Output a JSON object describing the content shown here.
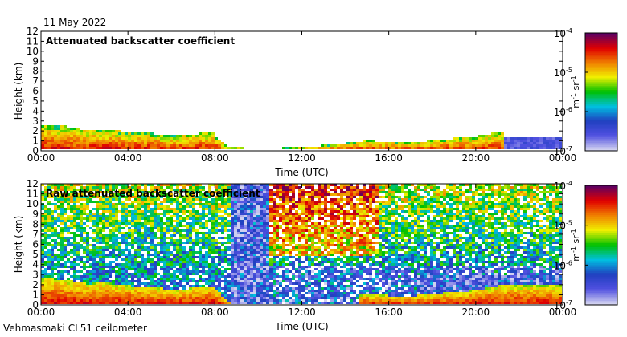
{
  "header": {
    "date": "11 May 2022"
  },
  "footer": {
    "station": "Vehmasmaki CL51 ceilometer"
  },
  "colorbar": {
    "tick_labels": [
      "10",
      "10",
      "10",
      "10"
    ],
    "exponents": [
      "-4",
      "-5",
      "-6",
      "-7"
    ],
    "unit_main": "m",
    "unit_exp1": "-1",
    "unit_mid": " sr",
    "unit_exp2": "-1",
    "colors": [
      "#d0d0f0",
      "#5050e0",
      "#2040c0",
      "#00c0e0",
      "#00c000",
      "#f0f000",
      "#f08000",
      "#e00000",
      "#600060"
    ]
  },
  "chart_data": [
    {
      "type": "heatmap",
      "title": "Attenuated backscatter coefficient",
      "xlabel": "Time (UTC)",
      "ylabel": "Height (km)",
      "x_tick_labels": [
        "00:00",
        "04:00",
        "08:00",
        "12:00",
        "16:00",
        "20:00",
        "00:00"
      ],
      "y_tick_labels": [
        "0",
        "1",
        "2",
        "3",
        "4",
        "5",
        "6",
        "7",
        "8",
        "9",
        "10",
        "11",
        "12"
      ],
      "xlim": [
        "00:00",
        "24:00"
      ],
      "ylim": [
        0,
        12
      ],
      "log_colorscale": [
        1e-07,
        0.0001
      ],
      "boundary_layer_top_km": [
        {
          "time": 0.0,
          "height": 2.8
        },
        {
          "time": 1.0,
          "height": 2.6
        },
        {
          "time": 2.0,
          "height": 2.2
        },
        {
          "time": 3.0,
          "height": 2.3
        },
        {
          "time": 4.0,
          "height": 2.0
        },
        {
          "time": 5.0,
          "height": 1.9
        },
        {
          "time": 6.0,
          "height": 1.6
        },
        {
          "time": 7.0,
          "height": 1.8
        },
        {
          "time": 7.8,
          "height": 2.0
        },
        {
          "time": 8.5,
          "height": 0.5
        },
        {
          "time": 10.0,
          "height": 0.3
        },
        {
          "time": 12.0,
          "height": 0.5
        },
        {
          "time": 14.0,
          "height": 0.9
        },
        {
          "time": 15.0,
          "height": 1.2
        },
        {
          "time": 16.0,
          "height": 1.0
        },
        {
          "time": 17.0,
          "height": 1.0
        },
        {
          "time": 20.0,
          "height": 1.6
        },
        {
          "time": 21.0,
          "height": 2.0
        }
      ]
    },
    {
      "type": "heatmap",
      "title": "Raw attenuated backscatter coefficient",
      "xlabel": "Time (UTC)",
      "ylabel": "Height (km)",
      "x_tick_labels": [
        "00:00",
        "04:00",
        "08:00",
        "12:00",
        "16:00",
        "20:00",
        "00:00"
      ],
      "y_tick_labels": [
        "0",
        "1",
        "2",
        "3",
        "4",
        "5",
        "6",
        "7",
        "8",
        "9",
        "10",
        "11",
        "12"
      ],
      "xlim": [
        "00:00",
        "24:00"
      ],
      "ylim": [
        0,
        12
      ],
      "log_colorscale": [
        1e-07,
        0.0001
      ]
    }
  ]
}
